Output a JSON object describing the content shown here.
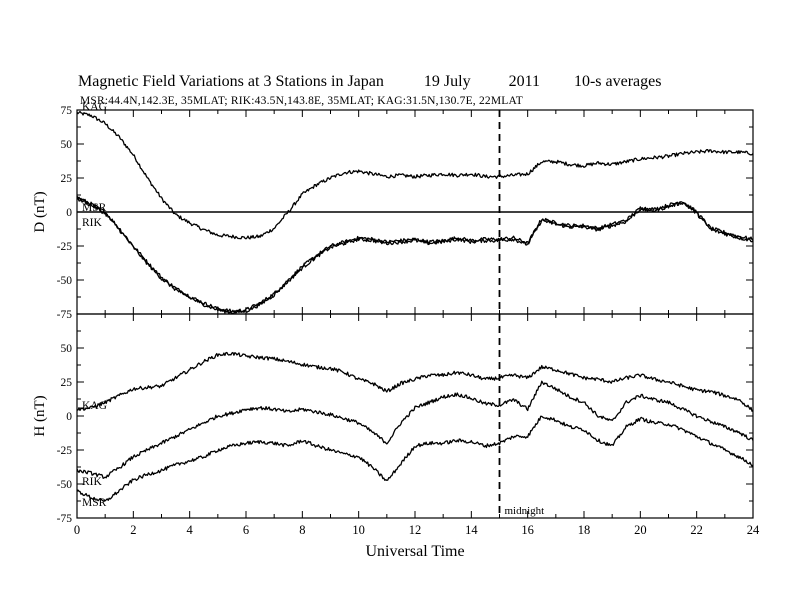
{
  "title": {
    "main": "Magnetic Field Variations at 3 Stations in Japan",
    "date": "19 July",
    "year": "2011",
    "averaging": "10-s averages"
  },
  "subtitle": "MSR:44.4N,142.3E, 35MLAT;  RIK:43.5N,143.8E, 35MLAT;  KAG:31.5N,130.7E, 22MLAT",
  "chart_data": [
    {
      "type": "line",
      "panel": "D",
      "ylabel": "D (nT)",
      "ylim": [
        -75,
        75
      ],
      "yticks": [
        75,
        50,
        25,
        0,
        -25,
        -50,
        -75
      ],
      "xlim": [
        0,
        24
      ],
      "zero_line": true,
      "series": [
        {
          "name": "KAG",
          "x": [
            0,
            0.5,
            1,
            1.5,
            2,
            2.5,
            3,
            3.5,
            4,
            4.5,
            5,
            5.5,
            6,
            6.5,
            7,
            7.5,
            8,
            8.5,
            9,
            9.5,
            10,
            10.5,
            11,
            11.5,
            12,
            12.5,
            13,
            13.5,
            14,
            14.5,
            15,
            15.5,
            16,
            16.5,
            17,
            17.5,
            18,
            18.5,
            19,
            19.5,
            20,
            20.5,
            21,
            21.5,
            22,
            22.5,
            23,
            23.5,
            24
          ],
          "values": [
            73,
            71,
            65,
            55,
            42,
            25,
            10,
            -2,
            -8,
            -13,
            -17,
            -18,
            -19,
            -18,
            -12,
            0,
            13,
            20,
            25,
            29,
            30,
            28,
            26,
            27,
            26,
            27,
            28,
            27,
            28,
            26,
            26,
            27,
            28,
            37,
            37,
            35,
            34,
            36,
            35,
            37,
            39,
            40,
            41,
            43,
            44,
            45,
            44,
            44,
            43
          ]
        },
        {
          "name": "MSR",
          "x": [
            0,
            0.5,
            1,
            1.5,
            2,
            2.5,
            3,
            3.5,
            4,
            4.5,
            5,
            5.5,
            6,
            6.5,
            7,
            7.5,
            8,
            8.5,
            9,
            9.5,
            10,
            10.5,
            11,
            11.5,
            12,
            12.5,
            13,
            13.5,
            14,
            14.5,
            15,
            15.5,
            16,
            16.5,
            17,
            17.5,
            18,
            18.5,
            19,
            19.5,
            20,
            20.5,
            21,
            21.5,
            22,
            22.5,
            23,
            23.5,
            24
          ],
          "values": [
            11,
            6,
            0,
            -12,
            -25,
            -37,
            -48,
            -56,
            -62,
            -67,
            -71,
            -73,
            -72,
            -67,
            -60,
            -50,
            -40,
            -32,
            -25,
            -22,
            -19,
            -20,
            -22,
            -21,
            -20,
            -22,
            -21,
            -19,
            -21,
            -20,
            -20,
            -19,
            -23,
            -5,
            -8,
            -10,
            -10,
            -12,
            -9,
            -6,
            3,
            2,
            5,
            8,
            0,
            -12,
            -15,
            -18,
            -20
          ]
        },
        {
          "name": "RIK",
          "x": [
            0,
            0.5,
            1,
            1.5,
            2,
            2.5,
            3,
            3.5,
            4,
            4.5,
            5,
            5.5,
            6,
            6.5,
            7,
            7.5,
            8,
            8.5,
            9,
            9.5,
            10,
            10.5,
            11,
            11.5,
            12,
            12.5,
            13,
            13.5,
            14,
            14.5,
            15,
            15.5,
            16,
            16.5,
            17,
            17.5,
            18,
            18.5,
            19,
            19.5,
            20,
            20.5,
            21,
            21.5,
            22,
            22.5,
            23,
            23.5,
            24
          ],
          "values": [
            10,
            5,
            -1,
            -13,
            -26,
            -38,
            -49,
            -57,
            -63,
            -68,
            -72,
            -74,
            -73,
            -68,
            -61,
            -51,
            -41,
            -33,
            -26,
            -23,
            -20,
            -21,
            -23,
            -22,
            -21,
            -23,
            -22,
            -20,
            -22,
            -21,
            -21,
            -20,
            -24,
            -6,
            -9,
            -11,
            -11,
            -13,
            -10,
            -7,
            2,
            1,
            4,
            7,
            -1,
            -13,
            -16,
            -19,
            -21
          ]
        }
      ]
    },
    {
      "type": "line",
      "panel": "H",
      "ylabel": "H (nT)",
      "ylim": [
        -75,
        75
      ],
      "yticks": [
        75,
        50,
        25,
        0,
        -25,
        -50,
        -75
      ],
      "xlim": [
        0,
        24
      ],
      "series": [
        {
          "name": "KAG",
          "x": [
            0,
            0.5,
            1,
            1.5,
            2,
            2.5,
            3,
            3.5,
            4,
            4.5,
            5,
            5.5,
            6,
            6.5,
            7,
            7.5,
            8,
            8.5,
            9,
            9.5,
            10,
            10.5,
            11,
            11.5,
            12,
            12.5,
            13,
            13.5,
            14,
            14.5,
            15,
            15.5,
            16,
            16.5,
            17,
            17.5,
            18,
            18.5,
            19,
            19.5,
            20,
            20.5,
            21,
            21.5,
            22,
            22.5,
            23,
            23.5,
            24
          ],
          "values": [
            5,
            6,
            10,
            15,
            20,
            21,
            22,
            28,
            34,
            40,
            45,
            46,
            44,
            43,
            42,
            40,
            38,
            36,
            35,
            32,
            27,
            24,
            18,
            24,
            27,
            30,
            30,
            32,
            30,
            27,
            28,
            30,
            28,
            36,
            34,
            31,
            28,
            27,
            25,
            28,
            30,
            27,
            25,
            22,
            19,
            18,
            15,
            12,
            4
          ]
        },
        {
          "name": "RIK",
          "x": [
            0,
            0.5,
            1,
            1.5,
            2,
            2.5,
            3,
            3.5,
            4,
            4.5,
            5,
            5.5,
            6,
            6.5,
            7,
            7.5,
            8,
            8.5,
            9,
            9.5,
            10,
            10.5,
            11,
            11.5,
            12,
            12.5,
            13,
            13.5,
            14,
            14.5,
            15,
            15.5,
            16,
            16.5,
            17,
            17.5,
            18,
            18.5,
            19,
            19.5,
            20,
            20.5,
            21,
            21.5,
            22,
            22.5,
            23,
            23.5,
            24
          ],
          "values": [
            -40,
            -42,
            -45,
            -38,
            -30,
            -25,
            -20,
            -15,
            -10,
            -5,
            0,
            2,
            5,
            6,
            5,
            3,
            5,
            3,
            1,
            -2,
            -5,
            -12,
            -20,
            -5,
            6,
            10,
            14,
            16,
            13,
            9,
            8,
            12,
            5,
            25,
            20,
            14,
            10,
            0,
            -4,
            10,
            15,
            12,
            10,
            5,
            0,
            -4,
            -8,
            -12,
            -18
          ]
        },
        {
          "name": "MSR",
          "x": [
            0,
            0.5,
            1,
            1.5,
            2,
            2.5,
            3,
            3.5,
            4,
            4.5,
            5,
            5.5,
            6,
            6.5,
            7,
            7.5,
            8,
            8.5,
            9,
            9.5,
            10,
            10.5,
            11,
            11.5,
            12,
            12.5,
            13,
            13.5,
            14,
            14.5,
            15,
            15.5,
            16,
            16.5,
            17,
            17.5,
            18,
            18.5,
            19,
            19.5,
            20,
            20.5,
            21,
            21.5,
            22,
            22.5,
            23,
            23.5,
            24
          ],
          "values": [
            -55,
            -60,
            -63,
            -55,
            -47,
            -43,
            -40,
            -36,
            -33,
            -30,
            -25,
            -22,
            -20,
            -19,
            -20,
            -22,
            -18,
            -22,
            -25,
            -28,
            -30,
            -38,
            -48,
            -35,
            -22,
            -20,
            -20,
            -18,
            -19,
            -22,
            -20,
            -15,
            -15,
            0,
            -3,
            -8,
            -10,
            -18,
            -22,
            -8,
            -2,
            -5,
            -6,
            -10,
            -15,
            -20,
            -25,
            -30,
            -36
          ]
        }
      ]
    }
  ],
  "xaxis": {
    "label": "Universal Time",
    "ticks": [
      "0",
      "2",
      "4",
      "6",
      "8",
      "10",
      "12",
      "14",
      "16",
      "18",
      "20",
      "22",
      "24"
    ],
    "range": [
      0,
      24
    ]
  },
  "annotations": {
    "midnight_label": "midnight",
    "midnight_ut": 15
  },
  "labels": {
    "d_kag": "KAG",
    "d_msr": "MSR",
    "d_rik": "RIK",
    "h_kag": "KAG",
    "h_rik": "RIK",
    "h_msr": "MSR"
  },
  "colors": {
    "line": "#000000",
    "background": "#ffffff"
  }
}
